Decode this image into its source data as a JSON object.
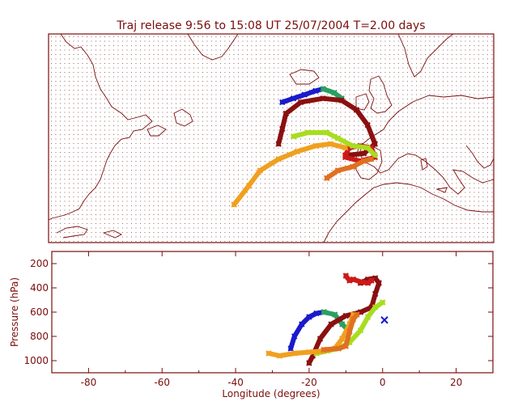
{
  "title": "Traj release 9:56 to 15:08 UT 25/07/2004     T=2.00 days",
  "chart_data": [
    {
      "type": "map",
      "title": "Traj release 9:56 to 15:08 UT 25/07/2004     T=2.00 days",
      "region": "North Atlantic / Europe",
      "lon_range": [
        -90,
        30
      ],
      "lat_range": [
        15,
        70
      ],
      "grid": "dotted",
      "trajectories": [
        {
          "color": "#1a1acc",
          "points": [
            [
              -27,
              52
            ],
            [
              -24,
              53
            ],
            [
              -21,
              54
            ],
            [
              -18,
              55
            ],
            [
              -16,
              55.5
            ]
          ]
        },
        {
          "color": "#2aa060",
          "points": [
            [
              -16,
              55.5
            ],
            [
              -13,
              54.5
            ],
            [
              -11,
              53
            ]
          ]
        },
        {
          "color": "#8a1010",
          "points": [
            [
              -28,
              41
            ],
            [
              -27,
              45
            ],
            [
              -26,
              49
            ],
            [
              -22,
              52
            ],
            [
              -16,
              53
            ],
            [
              -11,
              52.5
            ],
            [
              -7,
              50
            ],
            [
              -4,
              46
            ],
            [
              -2,
              41
            ],
            [
              -5,
              38.5
            ],
            [
              -10,
              38
            ]
          ]
        },
        {
          "color": "#cc1a1a",
          "points": [
            [
              -10,
              38
            ],
            [
              -9,
              40
            ],
            [
              -6,
              40.5
            ],
            [
              -3,
              40
            ],
            [
              -2,
              37.5
            ],
            [
              -6,
              36.5
            ],
            [
              -10,
              37.5
            ]
          ]
        },
        {
          "color": "#a8dd20",
          "points": [
            [
              -24,
              43
            ],
            [
              -20,
              44
            ],
            [
              -15,
              44
            ],
            [
              -12,
              42.5
            ],
            [
              -8,
              40.5
            ],
            [
              -4,
              40
            ],
            [
              -2,
              38
            ]
          ]
        },
        {
          "color": "#f0a020",
          "points": [
            [
              -40,
              25
            ],
            [
              -36,
              30
            ],
            [
              -33,
              34
            ],
            [
              -28,
              37
            ],
            [
              -23,
              39
            ],
            [
              -18,
              40.5
            ],
            [
              -14,
              41
            ],
            [
              -10,
              40
            ]
          ]
        },
        {
          "color": "#e07020",
          "points": [
            [
              -15,
              32
            ],
            [
              -12,
              34
            ],
            [
              -8,
              35
            ],
            [
              -5,
              36.5
            ],
            [
              -3,
              37
            ]
          ]
        }
      ]
    },
    {
      "type": "line",
      "xlabel": "Longitude  (degrees)",
      "ylabel": "Pressure  (hPa)",
      "xlim": [
        -90,
        30
      ],
      "ylim": [
        1100,
        100
      ],
      "xticks": [
        -80,
        -60,
        -40,
        -20,
        0,
        20
      ],
      "yticks": [
        200,
        400,
        600,
        800,
        1000
      ],
      "release_marker": {
        "x": 0.5,
        "y": 665,
        "color": "#1a1acc"
      },
      "series": [
        {
          "color": "#1a1acc",
          "x": [
            -25,
            -24,
            -22,
            -20,
            -18,
            -16
          ],
          "y": [
            900,
            800,
            700,
            640,
            610,
            600
          ]
        },
        {
          "color": "#2aa060",
          "x": [
            -16,
            -13,
            -11,
            -9
          ],
          "y": [
            600,
            620,
            700,
            760
          ]
        },
        {
          "color": "#8a1010",
          "x": [
            -20,
            -19,
            -17,
            -14,
            -10,
            -6,
            -3,
            -2,
            -1,
            -2,
            -4,
            -6
          ],
          "y": [
            1020,
            960,
            820,
            700,
            630,
            600,
            560,
            450,
            360,
            320,
            330,
            360
          ]
        },
        {
          "color": "#cc1a1a",
          "x": [
            -10,
            -9,
            -8,
            -6,
            -4,
            -3
          ],
          "y": [
            300,
            340,
            330,
            350,
            360,
            340
          ]
        },
        {
          "color": "#a8dd20",
          "x": [
            -18,
            -15,
            -12,
            -9,
            -6,
            -4,
            -2,
            0
          ],
          "y": [
            940,
            920,
            900,
            850,
            750,
            640,
            560,
            520
          ]
        },
        {
          "color": "#f0a020",
          "x": [
            -31,
            -28,
            -24,
            -20,
            -16,
            -13,
            -11,
            -9,
            -8
          ],
          "y": [
            940,
            960,
            940,
            930,
            920,
            900,
            820,
            700,
            620
          ]
        },
        {
          "color": "#e07020",
          "x": [
            -16,
            -12,
            -10,
            -9,
            -8,
            -7
          ],
          "y": [
            910,
            900,
            880,
            760,
            660,
            620
          ]
        }
      ]
    }
  ]
}
